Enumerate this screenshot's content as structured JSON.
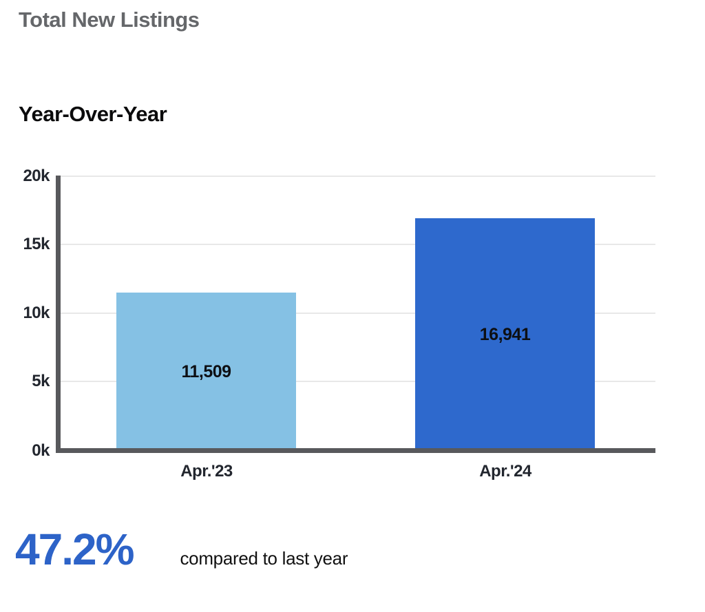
{
  "header": {
    "title": "Total New Listings"
  },
  "chart_data": {
    "type": "bar",
    "title": "Total New Listings",
    "subtitle": "Year-Over-Year",
    "categories": [
      "Apr.'23",
      "Apr.'24"
    ],
    "values": [
      11509,
      16941
    ],
    "value_labels": [
      "11,509",
      "16,941"
    ],
    "bar_colors": [
      "#85c1e4",
      "#2e69cd"
    ],
    "xlabel": "",
    "ylabel": "",
    "ylim": [
      0,
      20000
    ],
    "ytick_labels": [
      "20k",
      "15k",
      "10k",
      "5k",
      "0k"
    ],
    "ytick_values": [
      20000,
      15000,
      10000,
      5000,
      0
    ],
    "grid": true,
    "legend": false
  },
  "footer": {
    "percent": "47.2%",
    "caption": "compared to last year"
  },
  "colors": {
    "percent_blue": "#2d63c8",
    "title_gray": "#65676a",
    "text_dark": "#22262e",
    "axis_gray": "#58595c",
    "grid_gray": "#e8e8e8",
    "bar_light": "#85c1e4",
    "bar_dark": "#2e69cd"
  }
}
